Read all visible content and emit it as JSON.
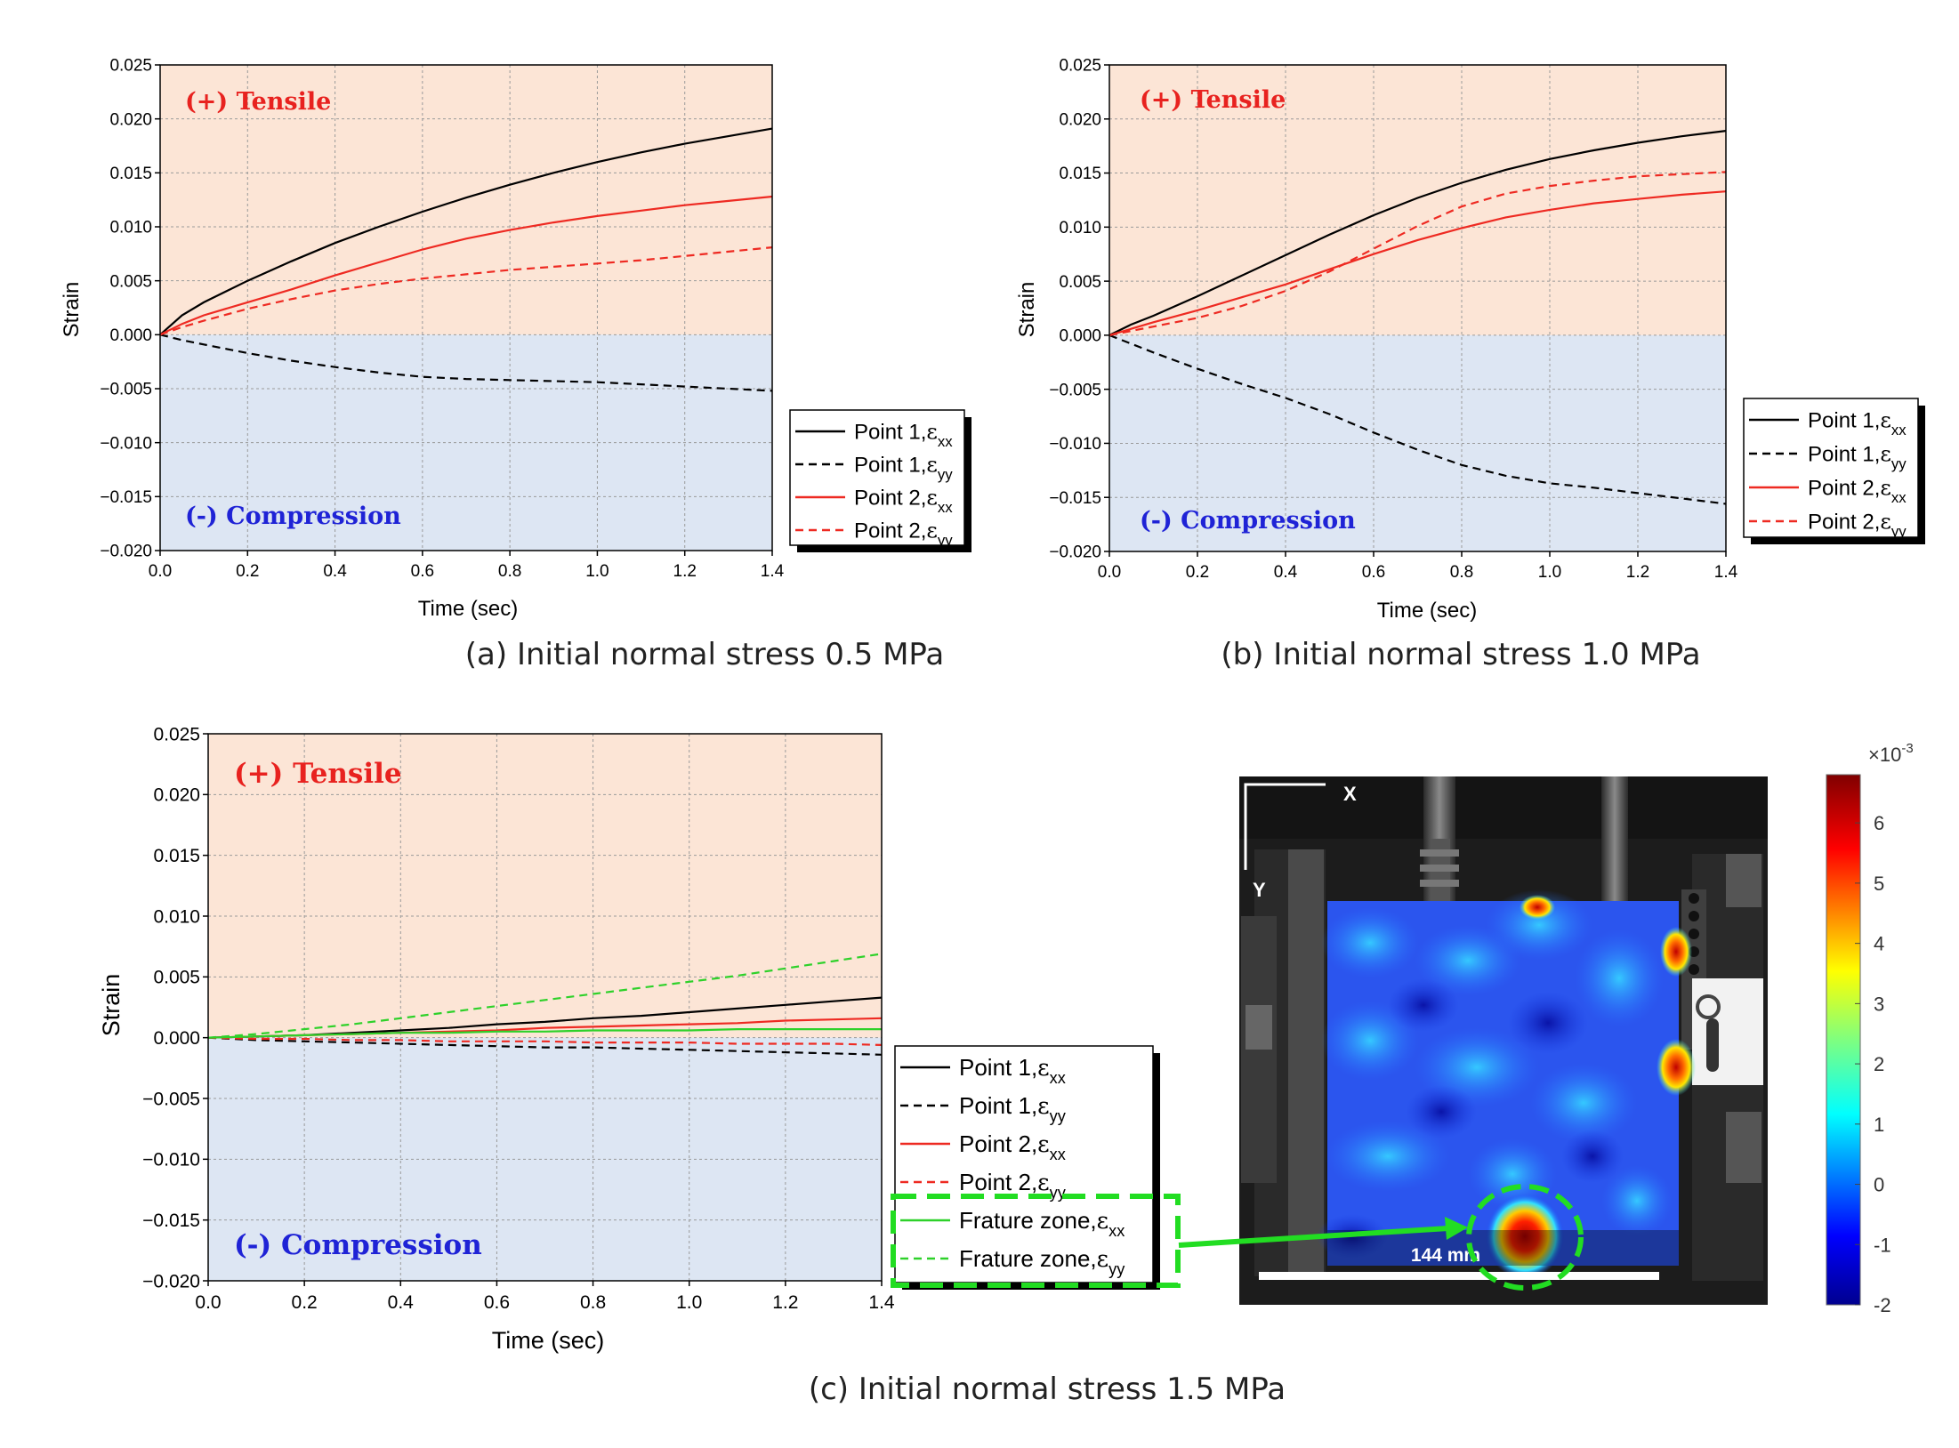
{
  "colors": {
    "tensile_bg": "#fce5d6",
    "compression_bg": "#dde6f3",
    "tensile_text": "#e8221f",
    "compression_text": "#1f23d6",
    "black": "#000000",
    "red": "#ee2a22",
    "green": "#2ed12a",
    "highlight": "#22dd22"
  },
  "labels": {
    "tensile": "(+) Tensile",
    "compression": "(-) Compression"
  },
  "chart_data": [
    {
      "id": "a",
      "type": "line",
      "caption": "(a) Initial normal stress 0.5 MPa",
      "xlabel": "Time (sec)",
      "ylabel": "Strain",
      "xlim": [
        0,
        1.4
      ],
      "ylim": [
        -0.02,
        0.025
      ],
      "xticks": [
        "0.0",
        "0.2",
        "0.4",
        "0.6",
        "0.8",
        "1.0",
        "1.2",
        "1.4"
      ],
      "yticks": [
        "0.025",
        "0.020",
        "0.015",
        "0.010",
        "0.005",
        "0.000",
        "−0.005",
        "−0.010",
        "−0.015",
        "−0.020"
      ],
      "x": [
        0,
        0.05,
        0.1,
        0.2,
        0.3,
        0.4,
        0.5,
        0.6,
        0.7,
        0.8,
        0.9,
        1.0,
        1.1,
        1.2,
        1.3,
        1.4
      ],
      "series": [
        {
          "name": "Point 1",
          "sub": "xx",
          "color": "black",
          "dash": false,
          "values": [
            0,
            0.0018,
            0.003,
            0.005,
            0.0068,
            0.0085,
            0.01,
            0.0114,
            0.0127,
            0.0139,
            0.015,
            0.016,
            0.0169,
            0.0177,
            0.0184,
            0.0191
          ]
        },
        {
          "name": "Point 1",
          "sub": "yy",
          "color": "black",
          "dash": true,
          "values": [
            0,
            -0.0005,
            -0.0009,
            -0.0017,
            -0.0024,
            -0.003,
            -0.0035,
            -0.0039,
            -0.0041,
            -0.0042,
            -0.0043,
            -0.0044,
            -0.0046,
            -0.0048,
            -0.005,
            -0.0052
          ]
        },
        {
          "name": "Point 2",
          "sub": "xx",
          "color": "red",
          "dash": false,
          "values": [
            0,
            0.001,
            0.0018,
            0.003,
            0.0042,
            0.0055,
            0.0067,
            0.0079,
            0.0089,
            0.0097,
            0.0104,
            0.011,
            0.0115,
            0.012,
            0.0124,
            0.0128
          ]
        },
        {
          "name": "Point 2",
          "sub": "yy",
          "color": "red",
          "dash": true,
          "values": [
            0,
            0.0007,
            0.0013,
            0.0024,
            0.0033,
            0.0041,
            0.0047,
            0.0052,
            0.0056,
            0.006,
            0.0063,
            0.0066,
            0.0069,
            0.0073,
            0.0077,
            0.0081
          ]
        }
      ]
    },
    {
      "id": "b",
      "type": "line",
      "caption": "(b) Initial normal stress 1.0 MPa",
      "xlabel": "Time (sec)",
      "ylabel": "Strain",
      "xlim": [
        0,
        1.4
      ],
      "ylim": [
        -0.02,
        0.025
      ],
      "xticks": [
        "0.0",
        "0.2",
        "0.4",
        "0.6",
        "0.8",
        "1.0",
        "1.2",
        "1.4"
      ],
      "yticks": [
        "0.025",
        "0.020",
        "0.015",
        "0.010",
        "0.005",
        "0.000",
        "−0.005",
        "−0.010",
        "−0.015",
        "−0.020"
      ],
      "x": [
        0,
        0.05,
        0.1,
        0.2,
        0.3,
        0.4,
        0.5,
        0.6,
        0.7,
        0.8,
        0.9,
        1.0,
        1.1,
        1.2,
        1.3,
        1.4
      ],
      "series": [
        {
          "name": "Point 1",
          "sub": "xx",
          "color": "black",
          "dash": false,
          "values": [
            0,
            0.001,
            0.0018,
            0.0036,
            0.0055,
            0.0074,
            0.0093,
            0.0111,
            0.0127,
            0.0141,
            0.0153,
            0.0163,
            0.0171,
            0.0178,
            0.0184,
            0.0189
          ]
        },
        {
          "name": "Point 1",
          "sub": "yy",
          "color": "black",
          "dash": true,
          "values": [
            0,
            -0.0008,
            -0.0016,
            -0.0031,
            -0.0045,
            -0.0058,
            -0.0073,
            -0.009,
            -0.0106,
            -0.012,
            -0.013,
            -0.0137,
            -0.0141,
            -0.0146,
            -0.0151,
            -0.0156
          ]
        },
        {
          "name": "Point 2",
          "sub": "xx",
          "color": "red",
          "dash": false,
          "values": [
            0,
            0.0006,
            0.0012,
            0.0023,
            0.0035,
            0.0047,
            0.0061,
            0.0075,
            0.0088,
            0.0099,
            0.0109,
            0.0116,
            0.0122,
            0.0126,
            0.013,
            0.0133
          ]
        },
        {
          "name": "Point 2",
          "sub": "yy",
          "color": "red",
          "dash": true,
          "values": [
            0,
            0.0004,
            0.0008,
            0.0016,
            0.0027,
            0.0041,
            0.0059,
            0.008,
            0.0101,
            0.0119,
            0.0131,
            0.0138,
            0.0143,
            0.0147,
            0.0149,
            0.0151
          ]
        }
      ]
    },
    {
      "id": "c",
      "type": "line",
      "caption": "(c) Initial normal stress 1.5 MPa",
      "xlabel": "Time (sec)",
      "ylabel": "Strain",
      "xlim": [
        0,
        1.4
      ],
      "ylim": [
        -0.02,
        0.025
      ],
      "xticks": [
        "0.0",
        "0.2",
        "0.4",
        "0.6",
        "0.8",
        "1.0",
        "1.2",
        "1.4"
      ],
      "yticks": [
        "0.025",
        "0.020",
        "0.015",
        "0.010",
        "0.005",
        "0.000",
        "−0.005",
        "−0.010",
        "−0.015",
        "−0.020"
      ],
      "x": [
        0,
        0.1,
        0.2,
        0.3,
        0.4,
        0.5,
        0.6,
        0.7,
        0.8,
        0.9,
        1.0,
        1.1,
        1.2,
        1.3,
        1.4
      ],
      "series": [
        {
          "name": "Point 1",
          "sub": "xx",
          "color": "black",
          "dash": false,
          "values": [
            0,
            0.0001,
            0.0002,
            0.0004,
            0.0006,
            0.0008,
            0.0011,
            0.0013,
            0.0016,
            0.0018,
            0.0021,
            0.0024,
            0.0027,
            0.003,
            0.0033
          ]
        },
        {
          "name": "Point 1",
          "sub": "yy",
          "color": "black",
          "dash": true,
          "values": [
            0,
            -0.0002,
            -0.0003,
            -0.0004,
            -0.0005,
            -0.0006,
            -0.0007,
            -0.0008,
            -0.0008,
            -0.0009,
            -0.001,
            -0.0011,
            -0.0012,
            -0.0013,
            -0.0014
          ]
        },
        {
          "name": "Point 2",
          "sub": "xx",
          "color": "red",
          "dash": false,
          "values": [
            0,
            0.0001,
            0.0002,
            0.0003,
            0.0004,
            0.0005,
            0.0006,
            0.0008,
            0.0009,
            0.001,
            0.0011,
            0.0012,
            0.0014,
            0.0015,
            0.0016
          ]
        },
        {
          "name": "Point 2",
          "sub": "yy",
          "color": "red",
          "dash": true,
          "values": [
            0,
            -0.0001,
            -0.0001,
            -0.0002,
            -0.0002,
            -0.0003,
            -0.0003,
            -0.0003,
            -0.0004,
            -0.0004,
            -0.0004,
            -0.0005,
            -0.0005,
            -0.0005,
            -0.0006
          ]
        },
        {
          "name": "Frature zone",
          "sub": "xx",
          "color": "green",
          "dash": false,
          "values": [
            0,
            0.0001,
            0.0002,
            0.0003,
            0.0004,
            0.0004,
            0.0005,
            0.0005,
            0.0006,
            0.0006,
            0.0006,
            0.0007,
            0.0007,
            0.0007,
            0.0007
          ]
        },
        {
          "name": "Frature zone",
          "sub": "yy",
          "color": "green",
          "dash": true,
          "values": [
            0,
            0.0003,
            0.0007,
            0.0011,
            0.0016,
            0.0021,
            0.0026,
            0.0031,
            0.0036,
            0.0041,
            0.0046,
            0.0051,
            0.0057,
            0.0063,
            0.0069
          ]
        }
      ]
    }
  ],
  "dic_image": {
    "axis_x": "X",
    "axis_y": "Y",
    "scale_bar": "144 mm",
    "colorbar": {
      "exponent": "×10",
      "exponent_power": "-3",
      "ticks": [
        "6",
        "5",
        "4",
        "3",
        "2",
        "1",
        "0",
        "-1",
        "-2"
      ],
      "min": -2,
      "max": 6.8
    }
  }
}
